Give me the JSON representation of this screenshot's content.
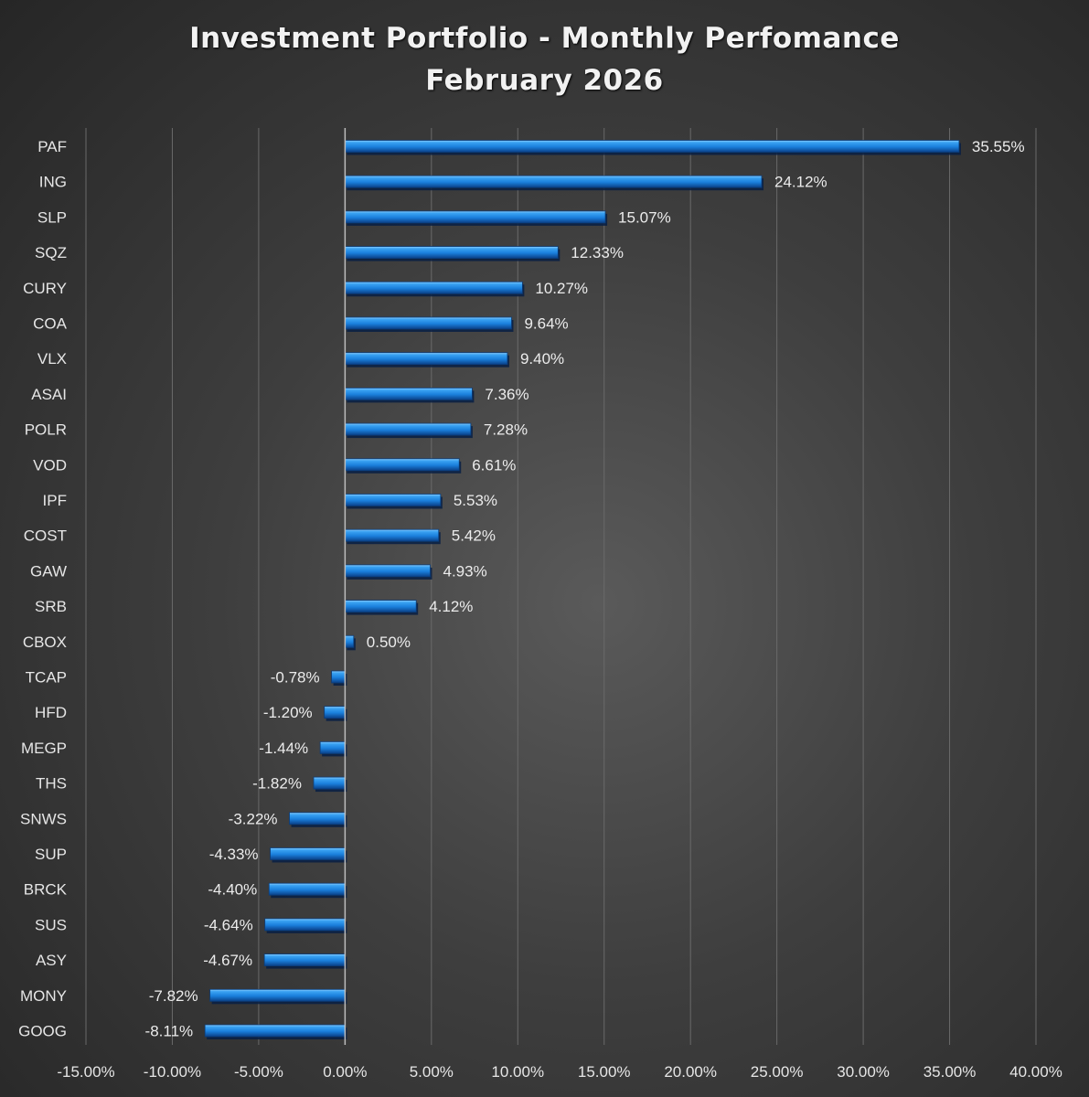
{
  "chart_data": {
    "type": "bar",
    "orientation": "horizontal",
    "title": "Investment Portfolio - Monthly Perfomance",
    "subtitle": "February 2026",
    "xlabel": "",
    "ylabel": "",
    "xlim": [
      -15,
      40
    ],
    "x_ticks": [
      -15,
      -10,
      -5,
      0,
      5,
      10,
      15,
      20,
      25,
      30,
      35,
      40
    ],
    "x_tick_labels": [
      "-15.00%",
      "-10.00%",
      "-5.00%",
      "0.00%",
      "5.00%",
      "10.00%",
      "15.00%",
      "20.00%",
      "25.00%",
      "30.00%",
      "35.00%",
      "40.00%"
    ],
    "grid": true,
    "legend": "none",
    "bar_color": "#1e88e5",
    "categories": [
      "PAF",
      "ING",
      "SLP",
      "SQZ",
      "CURY",
      "COA",
      "VLX",
      "ASAI",
      "POLR",
      "VOD",
      "IPF",
      "COST",
      "GAW",
      "SRB",
      "CBOX",
      "TCAP",
      "HFD",
      "MEGP",
      "THS",
      "SNWS",
      "SUP",
      "BRCK",
      "SUS",
      "ASY",
      "MONY",
      "GOOG"
    ],
    "values": [
      35.55,
      24.12,
      15.07,
      12.33,
      10.27,
      9.64,
      9.4,
      7.36,
      7.28,
      6.61,
      5.53,
      5.42,
      4.93,
      4.12,
      0.5,
      -0.78,
      -1.2,
      -1.44,
      -1.82,
      -3.22,
      -4.33,
      -4.4,
      -4.64,
      -4.67,
      -7.82,
      -8.11
    ],
    "data_labels": [
      "35.55%",
      "24.12%",
      "15.07%",
      "12.33%",
      "10.27%",
      "9.64%",
      "9.40%",
      "7.36%",
      "7.28%",
      "6.61%",
      "5.53%",
      "5.42%",
      "4.93%",
      "4.12%",
      "0.50%",
      "-0.78%",
      "-1.20%",
      "-1.44%",
      "-1.82%",
      "-3.22%",
      "-4.33%",
      "-4.40%",
      "-4.64%",
      "-4.67%",
      "-7.82%",
      "-8.11%"
    ]
  }
}
